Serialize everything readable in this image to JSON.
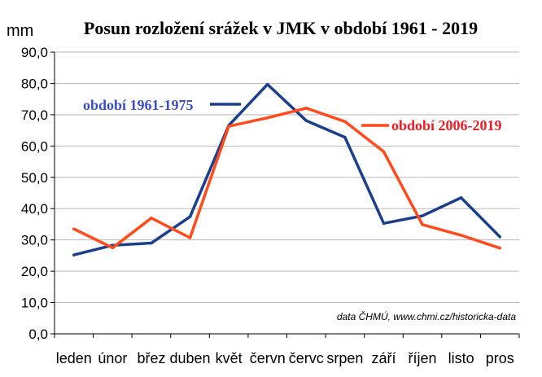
{
  "chart_data": {
    "type": "line",
    "title": "Posun  rozložení srážek v JMK v období 1961 - 2019",
    "ylabel": "mm",
    "xlabel": "",
    "categories": [
      "leden",
      "únor",
      "břez",
      "duben",
      "květ",
      "červn",
      "červc",
      "srpen",
      "září",
      "říjen",
      "listo",
      "pros"
    ],
    "ylim": [
      0,
      90
    ],
    "yticks": [
      "0,0",
      "10,0",
      "20,0",
      "30,0",
      "40,0",
      "50,0",
      "60,0",
      "70,0",
      "80,0",
      "90,0"
    ],
    "grid": true,
    "series": [
      {
        "name": "období 1961-1975",
        "color": "#1c3f8c",
        "label_color": "#3a4fc8",
        "values": [
          25.2,
          28.3,
          29.0,
          37.4,
          66.6,
          79.7,
          68.1,
          62.8,
          35.3,
          37.7,
          43.5,
          31.0
        ]
      },
      {
        "name": "období 2006-2019",
        "color": "#ff4a1a",
        "label_color": "#ee1c25",
        "values": [
          33.5,
          27.5,
          37.0,
          30.7,
          66.3,
          69.0,
          72.1,
          67.8,
          58.2,
          34.9,
          31.5,
          27.4
        ]
      }
    ],
    "annotations": {
      "source": "data ČHMÚ, www.chmi.cz/historicka-data"
    }
  }
}
